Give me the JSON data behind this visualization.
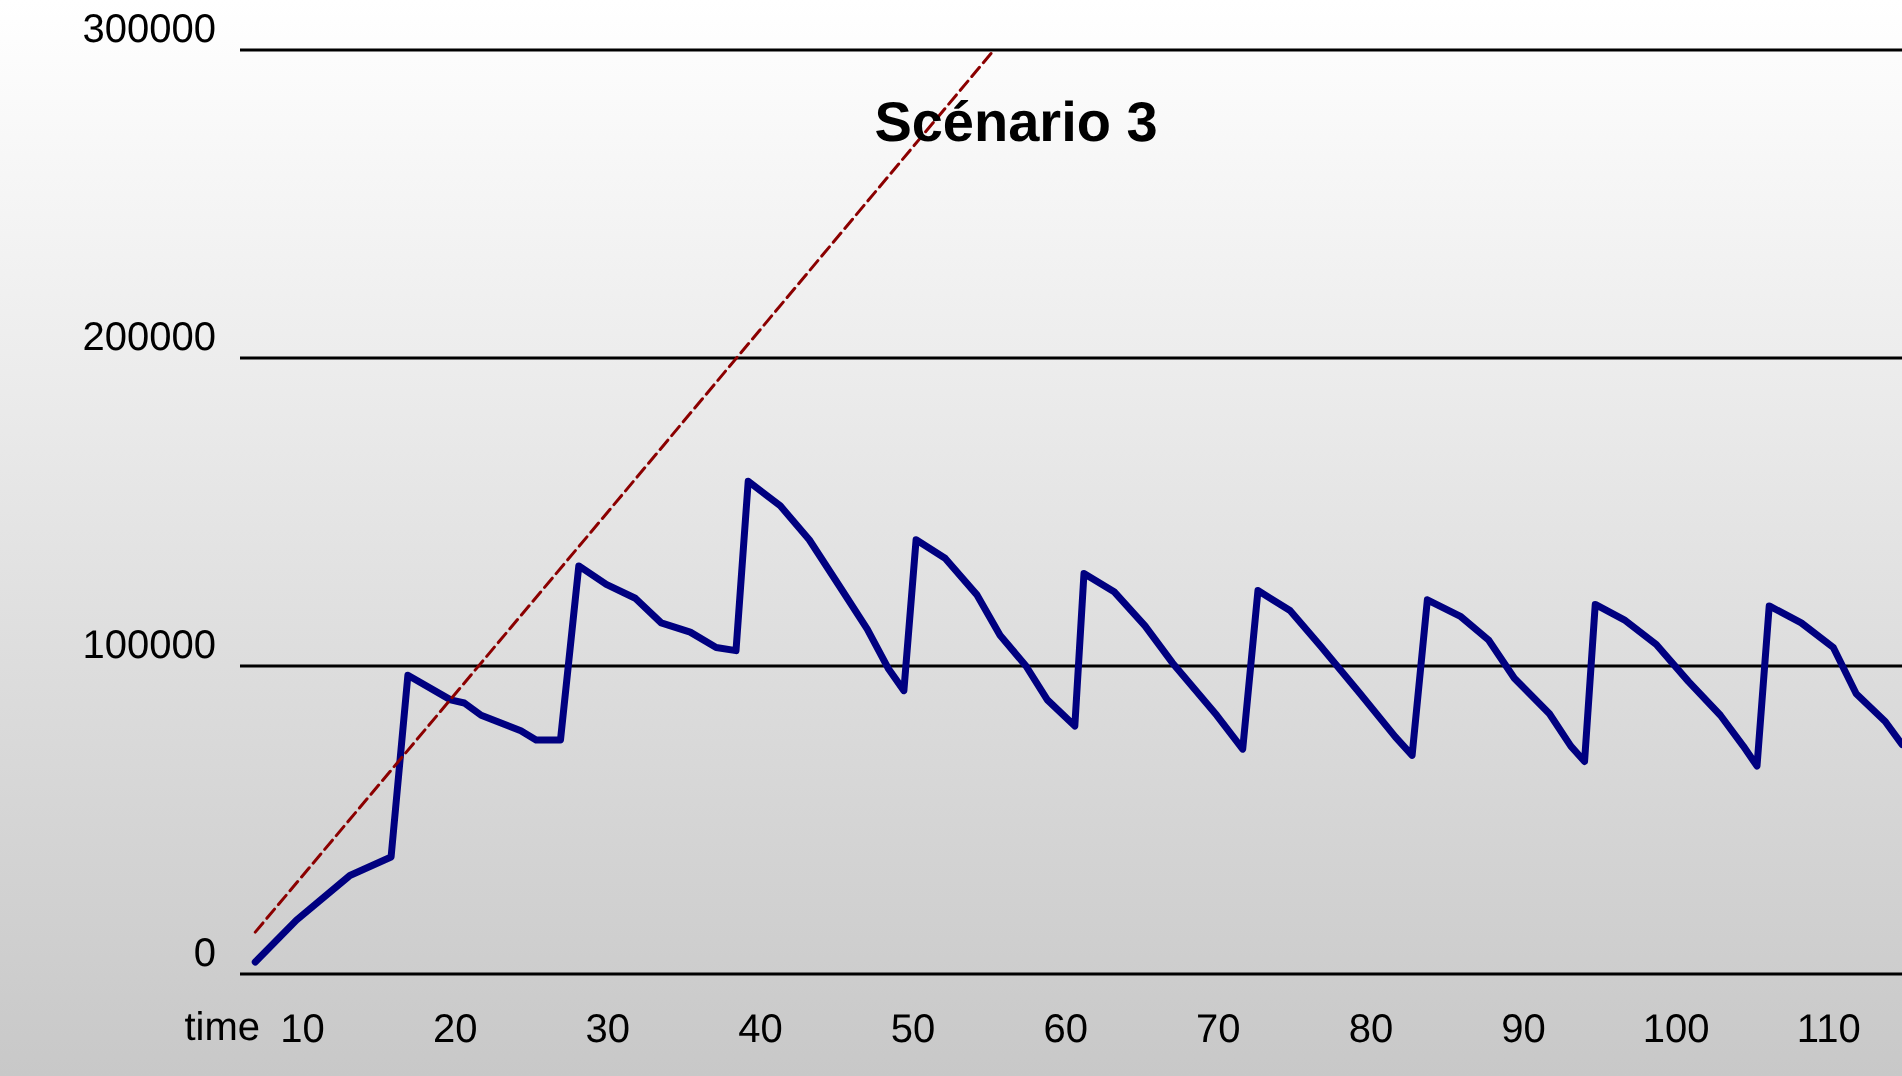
{
  "chart_data": {
    "type": "line",
    "title": "Scénario 3",
    "xlabel": "time",
    "xlim": [
      5.9,
      114.8
    ],
    "xticks": [
      10,
      20,
      30,
      40,
      50,
      60,
      70,
      80,
      90,
      100,
      110
    ],
    "ylim": [
      0,
      300000
    ],
    "yticks": [
      0,
      100000,
      200000,
      300000
    ],
    "grid": "y",
    "marker": "none",
    "series": [
      {
        "color": "#000080",
        "line_style": "solid",
        "x": [
          6.9,
          9.6,
          13.1,
          15.8,
          16.9,
          19.7,
          20.6,
          21.7,
          24.3,
          25.3,
          26.9,
          28.1,
          29.9,
          31.8,
          33.5,
          35.4,
          37.1,
          38.4,
          39.2,
          41.3,
          43.2,
          45.3,
          47.0,
          48.4,
          49.4,
          50.2,
          52.1,
          54.2,
          55.7,
          57.4,
          58.8,
          60.6,
          61.2,
          63.2,
          65.2,
          67.0,
          69.9,
          71.6,
          72.6,
          74.7,
          76.7,
          79.3,
          81.6,
          82.7,
          83.7,
          85.9,
          87.7,
          89.4,
          91.7,
          93.1,
          94.0,
          94.7,
          96.6,
          98.7,
          100.8,
          102.9,
          104.4,
          105.3,
          106.1,
          108.2,
          110.3,
          111.8,
          113.7,
          114.8
        ],
        "values": [
          3900,
          17500,
          32000,
          38000,
          97000,
          89000,
          88000,
          84000,
          79000,
          76000,
          76000,
          132500,
          126500,
          122000,
          114000,
          111000,
          106000,
          105000,
          160000,
          152000,
          141000,
          125000,
          112000,
          99000,
          92000,
          141000,
          135000,
          123000,
          110000,
          100000,
          89000,
          80500,
          130000,
          124000,
          113000,
          101000,
          84000,
          73000,
          124500,
          118000,
          106500,
          91000,
          77000,
          71000,
          121500,
          116000,
          108500,
          96000,
          84500,
          74000,
          69000,
          120000,
          115000,
          107000,
          95000,
          84000,
          74000,
          67500,
          119500,
          114000,
          106000,
          91000,
          82000,
          74500
        ]
      },
      {
        "color": "#8b0000",
        "line_style": "dashed",
        "x": [
          6.9,
          30,
          55.3
        ],
        "values": [
          13600,
          150000,
          300000
        ]
      }
    ]
  }
}
